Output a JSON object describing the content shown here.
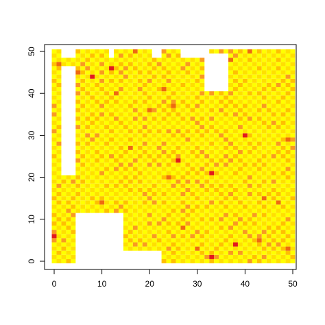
{
  "chart_data": {
    "type": "heatmap",
    "title": "",
    "xlabel": "",
    "ylabel": "",
    "xlim": [
      -2,
      52
    ],
    "ylim": [
      -2,
      52
    ],
    "x_ticks": [
      "0",
      "10",
      "20",
      "30",
      "40",
      "50"
    ],
    "y_ticks": [
      "0",
      "10",
      "20",
      "30",
      "40",
      "50"
    ],
    "colors": {
      "light": "#FFFF00",
      "yellow": "#FFE000",
      "amber": "#FFC000",
      "orange": "#F99A20",
      "dark_orange": "#EE6A10",
      "red": "#E21A1C"
    },
    "grid": {
      "x_min": 0,
      "x_max": 50,
      "y_min": 0,
      "y_max": 50,
      "checkerboard": true
    },
    "empty_regions": [
      {
        "x": [
          2,
          4
        ],
        "y": [
          21,
          46
        ]
      },
      {
        "x": [
          5,
          14
        ],
        "y": [
          0,
          11
        ]
      },
      {
        "x": [
          15,
          22
        ],
        "y": [
          0,
          2
        ]
      },
      {
        "x": [
          32,
          36
        ],
        "y": [
          41,
          49
        ]
      },
      {
        "x": [
          12,
          12
        ],
        "y": [
          49,
          50
        ]
      },
      {
        "x": [
          21,
          22
        ],
        "y": [
          49,
          50
        ]
      },
      {
        "x": [
          27,
          32
        ],
        "y": [
          49,
          50
        ]
      },
      {
        "x": [
          2,
          4
        ],
        "y": [
          49,
          50
        ]
      }
    ],
    "highlights": [
      {
        "x": 12,
        "y": 46,
        "level": "red"
      },
      {
        "x": 8,
        "y": 44,
        "level": "red"
      },
      {
        "x": 40,
        "y": 30,
        "level": "red"
      },
      {
        "x": 26,
        "y": 24,
        "level": "red"
      },
      {
        "x": 33,
        "y": 21,
        "level": "red"
      },
      {
        "x": 0,
        "y": 6,
        "level": "red"
      },
      {
        "x": 38,
        "y": 4,
        "level": "red"
      },
      {
        "x": 33,
        "y": 1,
        "level": "red"
      },
      {
        "x": 49,
        "y": 29,
        "level": "dark_orange"
      },
      {
        "x": 17,
        "y": 50,
        "level": "dark_orange"
      },
      {
        "x": 25,
        "y": 37,
        "level": "dark_orange"
      },
      {
        "x": 1,
        "y": 47,
        "level": "dark_orange"
      },
      {
        "x": 5,
        "y": 45,
        "level": "dark_orange"
      },
      {
        "x": 20,
        "y": 36,
        "level": "dark_orange"
      },
      {
        "x": 16,
        "y": 27,
        "level": "dark_orange"
      },
      {
        "x": 24,
        "y": 20,
        "level": "dark_orange"
      },
      {
        "x": 44,
        "y": 15,
        "level": "dark_orange"
      },
      {
        "x": 47,
        "y": 14,
        "level": "dark_orange"
      },
      {
        "x": 30,
        "y": 3,
        "level": "dark_orange"
      },
      {
        "x": 43,
        "y": 5,
        "level": "dark_orange"
      },
      {
        "x": 49,
        "y": 3,
        "level": "dark_orange"
      },
      {
        "x": 27,
        "y": 8,
        "level": "dark_orange"
      },
      {
        "x": 10,
        "y": 14,
        "level": "dark_orange"
      },
      {
        "x": 13,
        "y": 40,
        "level": "dark_orange"
      },
      {
        "x": 23,
        "y": 41,
        "level": "dark_orange"
      },
      {
        "x": 37,
        "y": 48,
        "level": "dark_orange"
      },
      {
        "x": 41,
        "y": 50,
        "level": "dark_orange"
      }
    ]
  }
}
